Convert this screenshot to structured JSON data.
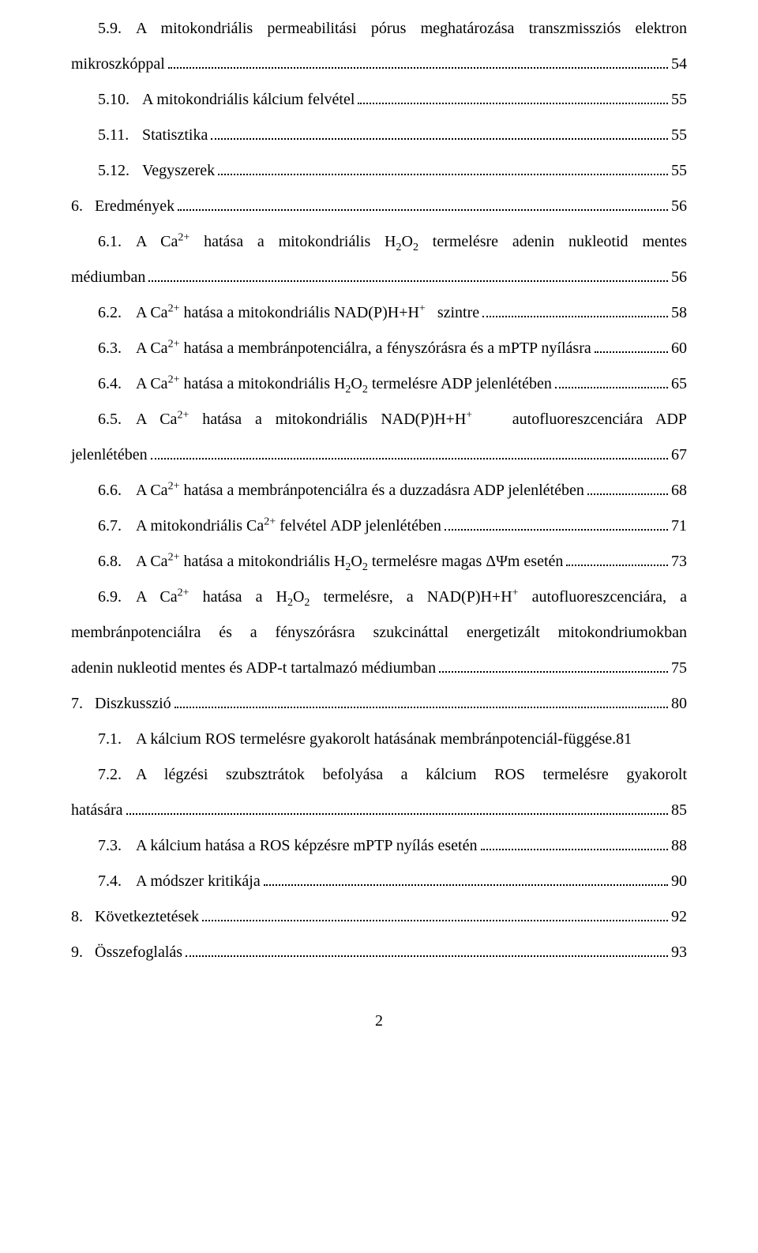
{
  "entries": [
    {
      "id": "e59",
      "num": "5.9.",
      "firstLine": "A mitokondriális permeabilitási pórus meghatározása transzmissziós elektron",
      "lastLine": "mikroszkóppal",
      "page": "54",
      "indent": 1,
      "multiline": true,
      "numClass": "tab1"
    },
    {
      "id": "e510",
      "num": "5.10.",
      "text": "A mitokondriális kálcium felvétel",
      "page": "55",
      "indent": 1,
      "numClass": "tabBig"
    },
    {
      "id": "e511",
      "num": "5.11.",
      "text": "Statisztika",
      "page": "55",
      "indent": 1,
      "numClass": "tabBig"
    },
    {
      "id": "e512",
      "num": "5.12.",
      "text": "Vegyszerek",
      "page": "55",
      "indent": 1,
      "numClass": "tabBig"
    },
    {
      "id": "e6",
      "num": "6.",
      "text": "Eredmények",
      "page": "56",
      "indent": 0,
      "numClass": "tabSmall"
    },
    {
      "id": "e61",
      "num": "6.1.",
      "firstHTML": "A Ca<sup>2+</sup> hatása a mitokondriális H<sub>2</sub>O<sub>2</sub> termelésre adenin nukleotid mentes",
      "lastLine": "médiumban",
      "page": "56",
      "indent": 1,
      "multiline": true,
      "numClass": "tab1"
    },
    {
      "id": "e62",
      "num": "6.2.",
      "htmlText": "A Ca<sup>2+</sup> hatása a mitokondriális NAD(P)H+H<sup>+</sup>&nbsp;&nbsp; szintre",
      "page": "58",
      "indent": 1,
      "numClass": "tab1"
    },
    {
      "id": "e63",
      "num": "6.3.",
      "htmlText": "A Ca<sup>2+</sup> hatása a membránpotenciálra, a fényszórásra és a mPTP nyílásra",
      "page": "60",
      "indent": 1,
      "numClass": "tab1"
    },
    {
      "id": "e64",
      "num": "6.4.",
      "htmlText": "A Ca<sup>2+</sup> hatása a mitokondriális H<sub>2</sub>O<sub>2</sub> termelésre ADP jelenlétében",
      "page": "65",
      "indent": 1,
      "numClass": "tab1"
    },
    {
      "id": "e65",
      "num": "6.5.",
      "firstHTML": "A Ca<sup>2+</sup> hatása a mitokondriális NAD(P)H+H<sup>+</sup>&nbsp;&nbsp; autofluoreszcenciára ADP",
      "lastLine": "jelenlétében",
      "page": "67",
      "indent": 1,
      "multiline": true,
      "numClass": "tab1"
    },
    {
      "id": "e66",
      "num": "6.6.",
      "htmlText": "A Ca<sup>2+</sup> hatása a membránpotenciálra és a duzzadásra ADP jelenlétében",
      "page": "68",
      "indent": 1,
      "numClass": "tab1"
    },
    {
      "id": "e67",
      "num": "6.7.",
      "htmlText": "A mitokondriális Ca<sup>2+</sup> felvétel ADP jelenlétében",
      "page": "71",
      "indent": 1,
      "numClass": "tab1"
    },
    {
      "id": "e68",
      "num": "6.8.",
      "htmlText": "A Ca<sup>2+</sup> hatása a mitokondriális H<sub>2</sub>O<sub>2</sub> termelésre magas ΔΨm esetén",
      "page": "73",
      "indent": 1,
      "numClass": "tab1"
    },
    {
      "id": "e69",
      "num": "6.9.",
      "firstHTML": "A Ca<sup>2+</sup> hatása a H<sub>2</sub>O<sub>2</sub> termelésre, a NAD(P)H+H<sup>+</sup> autofluoreszcenciára, a",
      "midLines": [
        "membránpotenciálra és a fényszórásra szukcináttal energetizált mitokondriumokban"
      ],
      "lastLine": "adenin nukleotid mentes és ADP-t tartalmazó médiumban",
      "page": "75",
      "indent": 1,
      "multiline": true,
      "numClass": "tab1"
    },
    {
      "id": "e7",
      "num": "7.",
      "text": "Diszkusszió",
      "page": "80",
      "indent": 0,
      "numClass": "tabSmall"
    },
    {
      "id": "e71",
      "num": "7.1.",
      "text": "A kálcium ROS termelésre gyakorolt hatásának membránpotenciál-függése.",
      "page": "81",
      "indent": 1,
      "numClass": "tab1",
      "noLeader": true
    },
    {
      "id": "e72",
      "num": "7.2.",
      "firstLine": "A légzési szubsztrátok befolyása a kálcium ROS termelésre gyakorolt",
      "lastLine": "hatására",
      "page": "85",
      "indent": 1,
      "multiline": true,
      "numClass": "tab1"
    },
    {
      "id": "e73",
      "num": "7.3.",
      "text": "A kálcium hatása a ROS képzésre mPTP nyílás esetén",
      "page": "88",
      "indent": 1,
      "numClass": "tab1"
    },
    {
      "id": "e74",
      "num": "7.4.",
      "text": "A módszer kritikája",
      "page": "90",
      "indent": 1,
      "numClass": "tab1"
    },
    {
      "id": "e8",
      "num": "8.",
      "text": "Következtetések",
      "page": "92",
      "indent": 0,
      "numClass": "tabSmall"
    },
    {
      "id": "e9",
      "num": "9.",
      "text": "Összefoglalás",
      "page": "93",
      "indent": 0,
      "numClass": "tabSmall"
    }
  ],
  "footerPage": "2"
}
